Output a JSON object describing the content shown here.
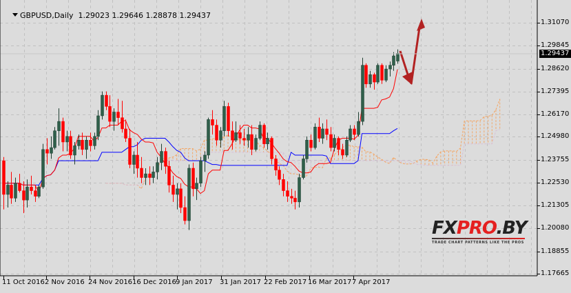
{
  "header": {
    "symbol": "GBPUSD,Daily",
    "open": "1.29023",
    "high": "1.29646",
    "low": "1.28878",
    "close": "1.29437"
  },
  "current_price_label": "1.29437",
  "watermark": {
    "brand_fx": "FX",
    "brand_pro": "PRO",
    "brand_by": ".BY",
    "tagline": "TRADE CHART PATTERNS LIKE THE PROS"
  },
  "colors": {
    "background": "#dcdcdc",
    "bull_candle": "#2f5f4a",
    "bear_candle": "#ff0000",
    "tenkan": "#ff0000",
    "kijun": "#0000ff",
    "senkou_a": "#f4a460",
    "senkou_b": "#d8bfd8",
    "arrow": "#b22222",
    "grid": "#c0c0c0"
  },
  "chart_data": {
    "type": "candlestick",
    "title": "GBPUSD,Daily",
    "indicators": [
      "Ichimoku Kinko Hyo (Tenkan-sen red, Kijun-sen blue, Senkou Span A sandy, Senkou Span B thistle cloud)"
    ],
    "y_ticks": [
      "1.31070",
      "1.29845",
      "1.28620",
      "1.27395",
      "1.26170",
      "1.24980",
      "1.23755",
      "1.22530",
      "1.21305",
      "1.20080",
      "1.18855",
      "1.17665"
    ],
    "x_ticks": [
      "11 Oct 2016",
      "2 Nov 2016",
      "24 Nov 2016",
      "16 Dec 2016",
      "9 Jan 2017",
      "31 Jan 2017",
      "22 Feb 2017",
      "16 Mar 2017",
      "7 Apr 2017"
    ],
    "ylim": [
      1.17665,
      1.3181
    ],
    "last_ohlc": {
      "open": 1.29023,
      "high": 1.29646,
      "low": 1.28878,
      "close": 1.29437
    },
    "annotation": "Red arrows: projected drop then rise (zig-zag down to ~1.279 then up to ~1.312)",
    "candles": [
      {
        "o": 1.237,
        "h": 1.239,
        "l": 1.211,
        "c": 1.219
      },
      {
        "o": 1.219,
        "h": 1.226,
        "l": 1.212,
        "c": 1.224
      },
      {
        "o": 1.224,
        "h": 1.231,
        "l": 1.214,
        "c": 1.217
      },
      {
        "o": 1.217,
        "h": 1.228,
        "l": 1.215,
        "c": 1.225
      },
      {
        "o": 1.225,
        "h": 1.23,
        "l": 1.22,
        "c": 1.221
      },
      {
        "o": 1.221,
        "h": 1.226,
        "l": 1.209,
        "c": 1.216
      },
      {
        "o": 1.216,
        "h": 1.227,
        "l": 1.212,
        "c": 1.223
      },
      {
        "o": 1.223,
        "h": 1.229,
        "l": 1.219,
        "c": 1.221
      },
      {
        "o": 1.221,
        "h": 1.224,
        "l": 1.215,
        "c": 1.218
      },
      {
        "o": 1.218,
        "h": 1.224,
        "l": 1.217,
        "c": 1.223
      },
      {
        "o": 1.223,
        "h": 1.246,
        "l": 1.222,
        "c": 1.243
      },
      {
        "o": 1.243,
        "h": 1.249,
        "l": 1.235,
        "c": 1.241
      },
      {
        "o": 1.241,
        "h": 1.25,
        "l": 1.238,
        "c": 1.244
      },
      {
        "o": 1.244,
        "h": 1.255,
        "l": 1.243,
        "c": 1.253
      },
      {
        "o": 1.253,
        "h": 1.265,
        "l": 1.245,
        "c": 1.258
      },
      {
        "o": 1.258,
        "h": 1.26,
        "l": 1.242,
        "c": 1.247
      },
      {
        "o": 1.247,
        "h": 1.253,
        "l": 1.242,
        "c": 1.25
      },
      {
        "o": 1.25,
        "h": 1.253,
        "l": 1.238,
        "c": 1.24
      },
      {
        "o": 1.24,
        "h": 1.247,
        "l": 1.235,
        "c": 1.245
      },
      {
        "o": 1.245,
        "h": 1.251,
        "l": 1.243,
        "c": 1.248
      },
      {
        "o": 1.248,
        "h": 1.252,
        "l": 1.24,
        "c": 1.243
      },
      {
        "o": 1.243,
        "h": 1.25,
        "l": 1.238,
        "c": 1.248
      },
      {
        "o": 1.248,
        "h": 1.252,
        "l": 1.242,
        "c": 1.245
      },
      {
        "o": 1.245,
        "h": 1.252,
        "l": 1.243,
        "c": 1.25
      },
      {
        "o": 1.25,
        "h": 1.264,
        "l": 1.248,
        "c": 1.261
      },
      {
        "o": 1.261,
        "h": 1.274,
        "l": 1.259,
        "c": 1.272
      },
      {
        "o": 1.272,
        "h": 1.274,
        "l": 1.264,
        "c": 1.266
      },
      {
        "o": 1.266,
        "h": 1.272,
        "l": 1.255,
        "c": 1.258
      },
      {
        "o": 1.258,
        "h": 1.265,
        "l": 1.253,
        "c": 1.263
      },
      {
        "o": 1.263,
        "h": 1.27,
        "l": 1.256,
        "c": 1.26
      },
      {
        "o": 1.26,
        "h": 1.269,
        "l": 1.252,
        "c": 1.254
      },
      {
        "o": 1.254,
        "h": 1.259,
        "l": 1.247,
        "c": 1.249
      },
      {
        "o": 1.249,
        "h": 1.254,
        "l": 1.233,
        "c": 1.235
      },
      {
        "o": 1.235,
        "h": 1.242,
        "l": 1.23,
        "c": 1.24
      },
      {
        "o": 1.24,
        "h": 1.247,
        "l": 1.228,
        "c": 1.233
      },
      {
        "o": 1.233,
        "h": 1.239,
        "l": 1.225,
        "c": 1.228
      },
      {
        "o": 1.228,
        "h": 1.233,
        "l": 1.224,
        "c": 1.23
      },
      {
        "o": 1.23,
        "h": 1.234,
        "l": 1.224,
        "c": 1.228
      },
      {
        "o": 1.228,
        "h": 1.234,
        "l": 1.225,
        "c": 1.231
      },
      {
        "o": 1.231,
        "h": 1.239,
        "l": 1.227,
        "c": 1.236
      },
      {
        "o": 1.236,
        "h": 1.246,
        "l": 1.232,
        "c": 1.242
      },
      {
        "o": 1.242,
        "h": 1.244,
        "l": 1.23,
        "c": 1.234
      },
      {
        "o": 1.234,
        "h": 1.237,
        "l": 1.22,
        "c": 1.224
      },
      {
        "o": 1.224,
        "h": 1.229,
        "l": 1.215,
        "c": 1.219
      },
      {
        "o": 1.219,
        "h": 1.225,
        "l": 1.211,
        "c": 1.222
      },
      {
        "o": 1.222,
        "h": 1.225,
        "l": 1.209,
        "c": 1.212
      },
      {
        "o": 1.212,
        "h": 1.218,
        "l": 1.203,
        "c": 1.205
      },
      {
        "o": 1.205,
        "h": 1.235,
        "l": 1.2,
        "c": 1.233
      },
      {
        "o": 1.233,
        "h": 1.236,
        "l": 1.218,
        "c": 1.222
      },
      {
        "o": 1.222,
        "h": 1.228,
        "l": 1.216,
        "c": 1.225
      },
      {
        "o": 1.225,
        "h": 1.239,
        "l": 1.223,
        "c": 1.237
      },
      {
        "o": 1.237,
        "h": 1.242,
        "l": 1.231,
        "c": 1.24
      },
      {
        "o": 1.24,
        "h": 1.26,
        "l": 1.238,
        "c": 1.259
      },
      {
        "o": 1.259,
        "h": 1.264,
        "l": 1.251,
        "c": 1.256
      },
      {
        "o": 1.256,
        "h": 1.259,
        "l": 1.245,
        "c": 1.248
      },
      {
        "o": 1.248,
        "h": 1.255,
        "l": 1.244,
        "c": 1.253
      },
      {
        "o": 1.253,
        "h": 1.269,
        "l": 1.25,
        "c": 1.266
      },
      {
        "o": 1.266,
        "h": 1.268,
        "l": 1.25,
        "c": 1.253
      },
      {
        "o": 1.253,
        "h": 1.258,
        "l": 1.243,
        "c": 1.248
      },
      {
        "o": 1.248,
        "h": 1.258,
        "l": 1.247,
        "c": 1.252
      },
      {
        "o": 1.252,
        "h": 1.256,
        "l": 1.246,
        "c": 1.249
      },
      {
        "o": 1.249,
        "h": 1.254,
        "l": 1.245,
        "c": 1.248
      },
      {
        "o": 1.248,
        "h": 1.255,
        "l": 1.244,
        "c": 1.251
      },
      {
        "o": 1.251,
        "h": 1.256,
        "l": 1.24,
        "c": 1.243
      },
      {
        "o": 1.243,
        "h": 1.251,
        "l": 1.242,
        "c": 1.249
      },
      {
        "o": 1.249,
        "h": 1.258,
        "l": 1.248,
        "c": 1.256
      },
      {
        "o": 1.256,
        "h": 1.257,
        "l": 1.244,
        "c": 1.246
      },
      {
        "o": 1.246,
        "h": 1.252,
        "l": 1.243,
        "c": 1.249
      },
      {
        "o": 1.249,
        "h": 1.25,
        "l": 1.235,
        "c": 1.238
      },
      {
        "o": 1.238,
        "h": 1.24,
        "l": 1.229,
        "c": 1.232
      },
      {
        "o": 1.232,
        "h": 1.234,
        "l": 1.224,
        "c": 1.227
      },
      {
        "o": 1.227,
        "h": 1.23,
        "l": 1.218,
        "c": 1.221
      },
      {
        "o": 1.221,
        "h": 1.226,
        "l": 1.215,
        "c": 1.218
      },
      {
        "o": 1.218,
        "h": 1.222,
        "l": 1.214,
        "c": 1.217
      },
      {
        "o": 1.217,
        "h": 1.221,
        "l": 1.211,
        "c": 1.215
      },
      {
        "o": 1.215,
        "h": 1.23,
        "l": 1.212,
        "c": 1.228
      },
      {
        "o": 1.228,
        "h": 1.24,
        "l": 1.227,
        "c": 1.238
      },
      {
        "o": 1.238,
        "h": 1.25,
        "l": 1.236,
        "c": 1.248
      },
      {
        "o": 1.248,
        "h": 1.251,
        "l": 1.242,
        "c": 1.244
      },
      {
        "o": 1.244,
        "h": 1.257,
        "l": 1.243,
        "c": 1.255
      },
      {
        "o": 1.255,
        "h": 1.26,
        "l": 1.247,
        "c": 1.249
      },
      {
        "o": 1.249,
        "h": 1.257,
        "l": 1.246,
        "c": 1.254
      },
      {
        "o": 1.254,
        "h": 1.259,
        "l": 1.248,
        "c": 1.251
      },
      {
        "o": 1.251,
        "h": 1.255,
        "l": 1.242,
        "c": 1.244
      },
      {
        "o": 1.244,
        "h": 1.251,
        "l": 1.242,
        "c": 1.249
      },
      {
        "o": 1.249,
        "h": 1.25,
        "l": 1.24,
        "c": 1.243
      },
      {
        "o": 1.243,
        "h": 1.246,
        "l": 1.238,
        "c": 1.24
      },
      {
        "o": 1.24,
        "h": 1.25,
        "l": 1.239,
        "c": 1.248
      },
      {
        "o": 1.248,
        "h": 1.256,
        "l": 1.247,
        "c": 1.254
      },
      {
        "o": 1.254,
        "h": 1.256,
        "l": 1.248,
        "c": 1.251
      },
      {
        "o": 1.251,
        "h": 1.263,
        "l": 1.25,
        "c": 1.258
      },
      {
        "o": 1.258,
        "h": 1.292,
        "l": 1.256,
        "c": 1.288
      },
      {
        "o": 1.288,
        "h": 1.289,
        "l": 1.276,
        "c": 1.278
      },
      {
        "o": 1.278,
        "h": 1.285,
        "l": 1.276,
        "c": 1.283
      },
      {
        "o": 1.283,
        "h": 1.284,
        "l": 1.275,
        "c": 1.279
      },
      {
        "o": 1.279,
        "h": 1.289,
        "l": 1.278,
        "c": 1.288
      },
      {
        "o": 1.288,
        "h": 1.289,
        "l": 1.278,
        "c": 1.28
      },
      {
        "o": 1.28,
        "h": 1.288,
        "l": 1.279,
        "c": 1.286
      },
      {
        "o": 1.286,
        "h": 1.29,
        "l": 1.282,
        "c": 1.288
      },
      {
        "o": 1.288,
        "h": 1.295,
        "l": 1.285,
        "c": 1.293
      },
      {
        "o": 1.29023,
        "h": 1.29646,
        "l": 1.28878,
        "c": 1.29437
      }
    ]
  }
}
